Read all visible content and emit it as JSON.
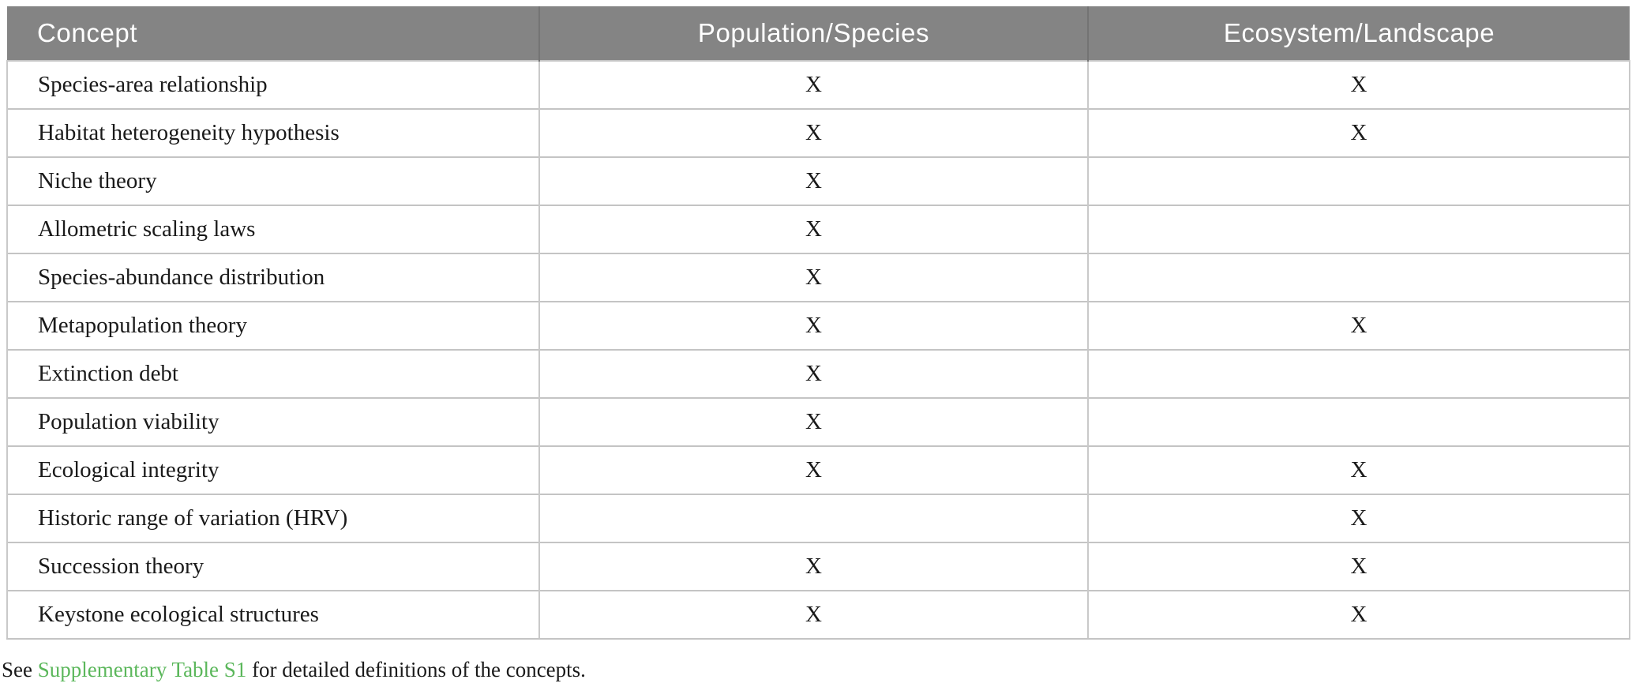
{
  "table": {
    "columns": [
      {
        "label": "Concept"
      },
      {
        "label": "Population/Species"
      },
      {
        "label": "Ecosystem/Landscape"
      }
    ],
    "rows": [
      {
        "concept": "Species-area relationship",
        "population_species": "X",
        "ecosystem_landscape": "X"
      },
      {
        "concept": "Habitat heterogeneity hypothesis",
        "population_species": "X",
        "ecosystem_landscape": "X"
      },
      {
        "concept": "Niche theory",
        "population_species": "X",
        "ecosystem_landscape": ""
      },
      {
        "concept": "Allometric scaling laws",
        "population_species": "X",
        "ecosystem_landscape": ""
      },
      {
        "concept": "Species-abundance distribution",
        "population_species": "X",
        "ecosystem_landscape": ""
      },
      {
        "concept": "Metapopulation theory",
        "population_species": "X",
        "ecosystem_landscape": "X"
      },
      {
        "concept": "Extinction debt",
        "population_species": "X",
        "ecosystem_landscape": ""
      },
      {
        "concept": "Population viability",
        "population_species": "X",
        "ecosystem_landscape": ""
      },
      {
        "concept": "Ecological integrity",
        "population_species": "X",
        "ecosystem_landscape": "X"
      },
      {
        "concept": "Historic range of variation (HRV)",
        "population_species": "",
        "ecosystem_landscape": "X"
      },
      {
        "concept": "Succession theory",
        "population_species": "X",
        "ecosystem_landscape": "X"
      },
      {
        "concept": "Keystone ecological structures",
        "population_species": "X",
        "ecosystem_landscape": "X"
      }
    ]
  },
  "footnote": {
    "prefix": "See ",
    "link_text": "Supplementary Table S1",
    "suffix": " for detailed definitions of the concepts."
  },
  "colors": {
    "header_bg": "#848484",
    "header_text": "#ffffff",
    "row_border": "#c4c4c4",
    "column_border": "#c9c9c9",
    "header_divider": "#747474",
    "link_green": "#5bb75b",
    "body_text": "#1a1a1a"
  }
}
